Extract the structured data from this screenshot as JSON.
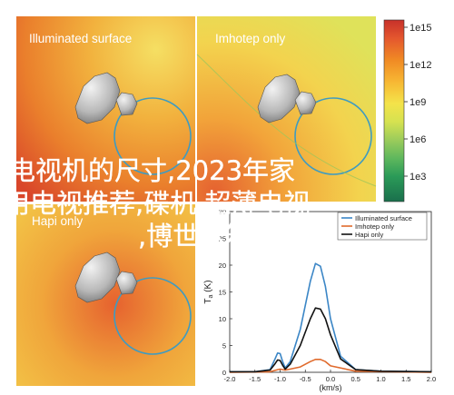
{
  "panels": [
    {
      "title": "Illuminated surface"
    },
    {
      "title": "Imhotep only"
    },
    {
      "title": "Hapi only"
    }
  ],
  "colorbar": {
    "ticks": [
      "1e15",
      "1e12",
      "1e9",
      "1e6",
      "1e3"
    ],
    "colors": [
      "#c7302a",
      "#e4572e",
      "#f08a24",
      "#f7b733",
      "#f4e34a",
      "#d6e250",
      "#9ccc5b",
      "#5fb85d",
      "#2b9b58",
      "#1a6f4c"
    ]
  },
  "overlay": {
    "line1": "电视机的尺寸,2023年家",
    "line2": "用电视推荐,碟机,超薄电视",
    "line3": ",博世冰箱"
  },
  "chart_data": {
    "type": "line",
    "ylabel": "T_a (K)",
    "xlabel": "(km/s)",
    "x_ticks": [
      "-2.0",
      "-1.5",
      "-1.0",
      "-0.5",
      "0.0",
      "0.5",
      "1.0",
      "1.5",
      "2.0"
    ],
    "y_ticks": [
      "0",
      "5",
      "10",
      "15",
      "20",
      "25",
      "30"
    ],
    "xlim": [
      -2.0,
      2.0
    ],
    "ylim": [
      0,
      30
    ],
    "series": [
      {
        "name": "Illuminated surface",
        "color": "#3b86c6",
        "x": [
          -2.0,
          -1.5,
          -1.2,
          -1.1,
          -1.05,
          -1.0,
          -0.95,
          -0.9,
          -0.8,
          -0.6,
          -0.4,
          -0.3,
          -0.2,
          -0.1,
          0.0,
          0.2,
          0.5,
          1.0,
          2.0
        ],
        "y": [
          0.1,
          0.1,
          0.5,
          2.5,
          3.6,
          3.5,
          2.0,
          0.8,
          2.0,
          8.0,
          17.0,
          20.3,
          19.8,
          16.0,
          10.0,
          3.0,
          0.5,
          0.2,
          0.1
        ]
      },
      {
        "name": "Imhotep only",
        "color": "#e06a2c",
        "x": [
          -2.0,
          -1.2,
          -1.05,
          -1.0,
          -0.9,
          -0.6,
          -0.4,
          -0.3,
          -0.2,
          -0.1,
          0.0,
          0.5,
          2.0
        ],
        "y": [
          0.0,
          0.1,
          0.5,
          0.6,
          0.4,
          1.0,
          2.0,
          2.4,
          2.4,
          2.0,
          1.2,
          0.2,
          0.0
        ]
      },
      {
        "name": "Hapi only",
        "color": "#111111",
        "x": [
          -2.0,
          -1.5,
          -1.2,
          -1.1,
          -1.05,
          -1.0,
          -0.95,
          -0.9,
          -0.8,
          -0.6,
          -0.4,
          -0.3,
          -0.2,
          -0.1,
          0.0,
          0.2,
          0.5,
          1.0,
          2.0
        ],
        "y": [
          0.1,
          0.1,
          0.4,
          1.6,
          2.3,
          2.2,
          1.3,
          0.6,
          1.5,
          5.0,
          10.0,
          12.0,
          11.8,
          10.0,
          7.0,
          2.5,
          0.5,
          0.2,
          0.1
        ]
      }
    ]
  }
}
